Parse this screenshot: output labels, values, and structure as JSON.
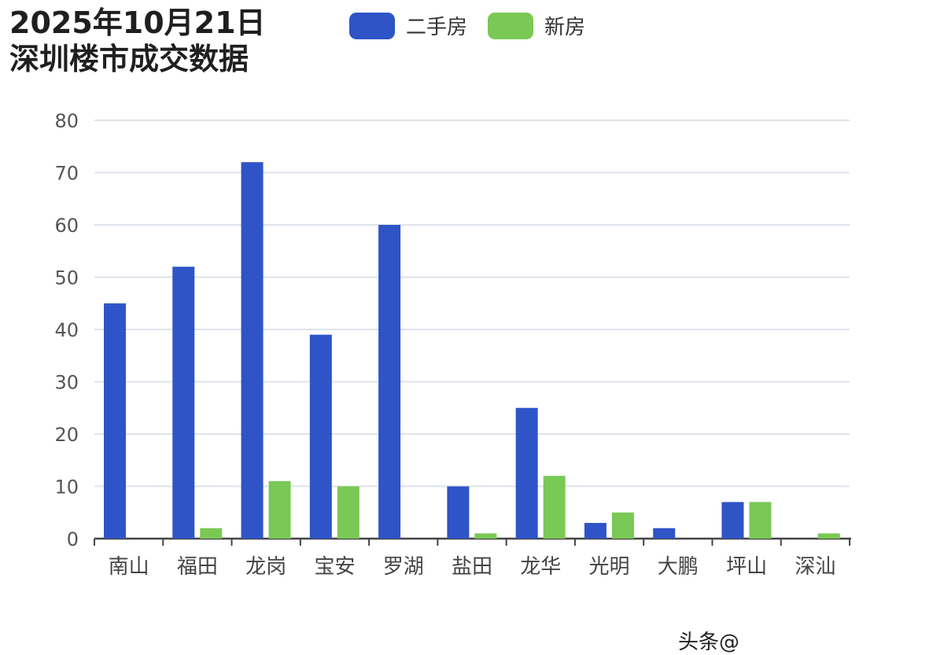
{
  "title_lines": [
    "2025年10月21日",
    "深圳楼市成交数据"
  ],
  "colors": {
    "second_hand": "#2f54c8",
    "new_house": "#7ac855",
    "grid": "#dde3ea",
    "axis": "#444444"
  },
  "legend": [
    {
      "name": "二手房",
      "color": "#2f54c8"
    },
    {
      "name": "新房",
      "color": "#7ac855"
    }
  ],
  "watermark": "头条@",
  "chart_data": {
    "type": "bar",
    "title": "2025年10月21日 深圳楼市成交数据",
    "categories": [
      "南山",
      "福田",
      "龙岗",
      "宝安",
      "罗湖",
      "盐田",
      "龙华",
      "光明",
      "大鹏",
      "坪山",
      "深汕"
    ],
    "series": [
      {
        "name": "二手房",
        "values": [
          45,
          52,
          72,
          39,
          60,
          10,
          25,
          3,
          2,
          7,
          0
        ]
      },
      {
        "name": "新房",
        "values": [
          0,
          2,
          11,
          10,
          0,
          1,
          12,
          5,
          0,
          7,
          1
        ]
      }
    ],
    "ylim": [
      0,
      80
    ],
    "yticks": [
      0,
      10,
      20,
      30,
      40,
      50,
      60,
      70,
      80
    ],
    "grid": true,
    "legend_position": "top"
  }
}
